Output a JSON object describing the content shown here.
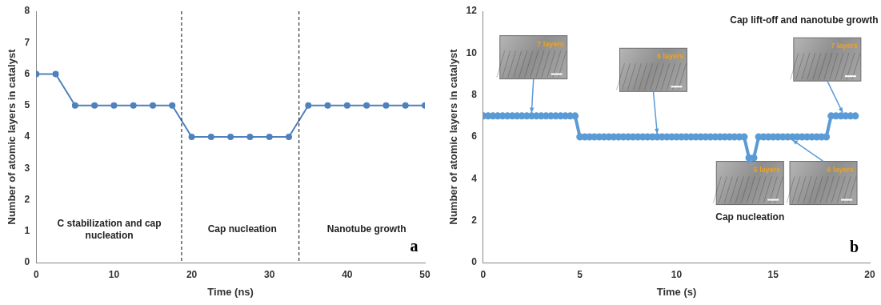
{
  "chart_data": [
    {
      "type": "line",
      "panel_label": "a",
      "x_label": "Time (ns)",
      "y_label": "Number of atomic layers in catalyst",
      "x": [
        0,
        2.5,
        5,
        7.5,
        10,
        12.5,
        15,
        17.5,
        20,
        22.5,
        25,
        27.5,
        30,
        32.5,
        35,
        37.5,
        40,
        42.5,
        45,
        47.5,
        50
      ],
      "series": [
        {
          "color": "#4f81bd",
          "marker": "circle",
          "line_style": "solid",
          "values": [
            6,
            6,
            5,
            5,
            5,
            5,
            5,
            5,
            4,
            4,
            4,
            4,
            4,
            4,
            5,
            5,
            5,
            5,
            5,
            5,
            5
          ]
        }
      ],
      "xlim": [
        0,
        50
      ],
      "xticks": [
        0,
        10,
        20,
        30,
        40,
        50
      ],
      "ylim": [
        0,
        8
      ],
      "yticks": [
        0,
        1,
        2,
        3,
        4,
        5,
        6,
        7,
        8
      ],
      "grid": false,
      "phase_boundaries": [
        18.7,
        33.8
      ],
      "annotations": [
        [
          "C stabilization and cap",
          "nucleation"
        ],
        [
          "Cap nucleation"
        ],
        [
          "Nanotube growth"
        ]
      ]
    },
    {
      "type": "line",
      "panel_label": "b",
      "x_label": "Time (s)",
      "y_label": "Number of atomic layers in catalyst",
      "x": [
        0,
        0.25,
        0.5,
        0.75,
        1,
        1.25,
        1.5,
        1.75,
        2,
        2.25,
        2.5,
        2.75,
        3,
        3.25,
        3.5,
        3.75,
        4,
        4.25,
        4.5,
        4.75,
        5,
        5.25,
        5.5,
        5.75,
        6,
        6.25,
        6.5,
        6.75,
        7,
        7.25,
        7.5,
        7.75,
        8,
        8.25,
        8.5,
        8.75,
        9,
        9.25,
        9.5,
        9.75,
        10,
        10.25,
        10.5,
        10.75,
        11,
        11.25,
        11.5,
        11.75,
        12,
        12.25,
        12.5,
        12.75,
        13,
        13.25,
        13.5,
        13.75,
        14,
        14.25,
        14.5,
        14.75,
        15,
        15.25,
        15.5,
        15.75,
        16,
        16.25,
        16.5,
        16.75,
        17,
        17.25,
        17.5,
        17.75,
        18,
        18.25,
        18.5,
        18.75,
        19,
        19.25
      ],
      "series": [
        {
          "color": "#5b9bd5",
          "marker": "circle",
          "line_style": "solid",
          "values": [
            7,
            7,
            7,
            7,
            7,
            7,
            7,
            7,
            7,
            7,
            7,
            7,
            7,
            7,
            7,
            7,
            7,
            7,
            7,
            7,
            6,
            6,
            6,
            6,
            6,
            6,
            6,
            6,
            6,
            6,
            6,
            6,
            6,
            6,
            6,
            6,
            6,
            6,
            6,
            6,
            6,
            6,
            6,
            6,
            6,
            6,
            6,
            6,
            6,
            6,
            6,
            6,
            6,
            6,
            6,
            5,
            5,
            6,
            6,
            6,
            6,
            6,
            6,
            6,
            6,
            6,
            6,
            6,
            6,
            6,
            6,
            6,
            7,
            7,
            7,
            7,
            7,
            7
          ]
        }
      ],
      "xlim": [
        0,
        20
      ],
      "xticks": [
        0,
        5,
        10,
        15,
        20
      ],
      "ylim": [
        0,
        12
      ],
      "yticks": [
        0,
        2,
        4,
        6,
        8,
        10,
        12
      ],
      "grid": false,
      "annotations": [
        [
          "Cap lift-off and nanotube growth"
        ],
        [
          "Cap nucleation"
        ]
      ],
      "inset_labels": [
        "7 layers",
        "6 layers",
        "5 layers",
        "6 layers",
        "7 layers"
      ]
    }
  ]
}
